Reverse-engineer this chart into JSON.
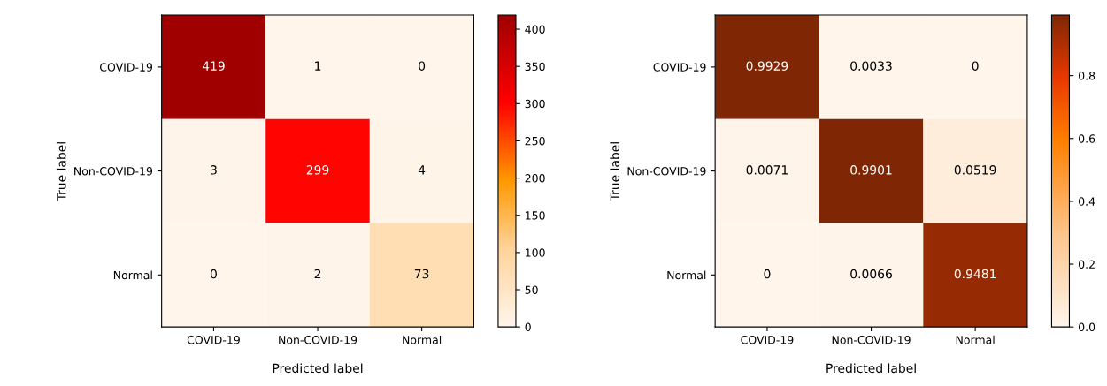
{
  "chart_data": [
    {
      "type": "heatmap",
      "xlabel": "Predicted label",
      "ylabel": "True label",
      "categories": [
        "COVID-19",
        "Non-COVID-19",
        "Normal"
      ],
      "y_categories": [
        "COVID-19",
        "Non-COVID-19",
        "Normal"
      ],
      "cells": [
        [
          419,
          1,
          0
        ],
        [
          3,
          299,
          4
        ],
        [
          0,
          2,
          73
        ]
      ],
      "clim": [
        0,
        419
      ],
      "cticks": [
        0,
        50,
        100,
        150,
        200,
        250,
        300,
        350,
        400
      ],
      "data_labels": true
    },
    {
      "type": "heatmap",
      "xlabel": "Predicted label",
      "ylabel": "True label",
      "categories": [
        "COVID-19",
        "Non-COVID-19",
        "Normal"
      ],
      "y_categories": [
        "COVID-19",
        "Non-COVID-19",
        "Normal"
      ],
      "cells": [
        [
          0.9929,
          0.0033,
          0
        ],
        [
          0.0071,
          0.9901,
          0.0519
        ],
        [
          0,
          0.0066,
          0.9481
        ]
      ],
      "clim": [
        0,
        0.9929
      ],
      "cticks": [
        {
          "value": 0,
          "label": "0.0"
        },
        0.2,
        0.4,
        0.6,
        0.8
      ],
      "data_labels": true
    }
  ]
}
